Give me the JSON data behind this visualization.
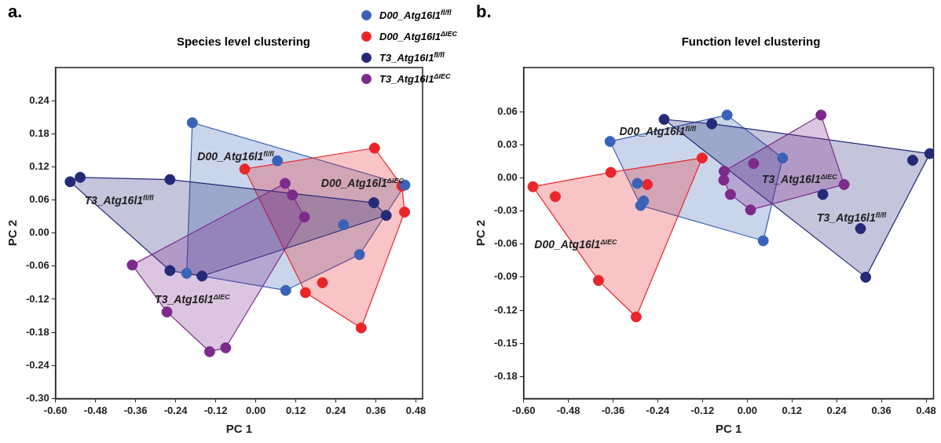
{
  "chart_data": [
    {
      "type": "scatter",
      "title": "Species level clustering",
      "xlabel": "PC 1",
      "ylabel": "PC 2",
      "annotations": [
        "a."
      ],
      "series": [
        {
          "name": "D00_Atg16l1$^{fl/fl}$",
          "color": "#3a62b6",
          "x": [
            -0.19,
            0.065,
            0.447,
            0.263,
            0.311,
            0.09,
            -0.207
          ],
          "values": [
            0.2,
            0.131,
            0.087,
            0.015,
            -0.039,
            -0.104,
            -0.073
          ]
        },
        {
          "name": "D00_Atg16l1$^{ΔIEC}$",
          "color": "#e8262a",
          "x": [
            -0.033,
            0.356,
            0.438,
            0.446,
            0.2,
            0.149,
            0.316
          ],
          "values": [
            0.116,
            0.154,
            0.085,
            0.038,
            -0.09,
            -0.108,
            -0.172
          ]
        },
        {
          "name": "T3_Atg16l1$^{fl/fl}$",
          "color": "#242a78",
          "x": [
            -0.556,
            -0.526,
            -0.257,
            0.354,
            0.391,
            -0.257,
            -0.161
          ],
          "values": [
            0.093,
            0.101,
            0.097,
            0.055,
            0.032,
            -0.068,
            -0.078
          ]
        },
        {
          "name": "T3_Atg16l1$^{ΔIEC}$",
          "color": "#7c2a8c",
          "x": [
            0.088,
            0.11,
            0.146,
            -0.37,
            -0.266,
            -0.138,
            -0.09
          ],
          "values": [
            0.09,
            0.069,
            0.029,
            -0.058,
            -0.143,
            -0.215,
            -0.208
          ]
        }
      ],
      "xlim": [
        -0.6,
        0.5
      ],
      "ylim": [
        -0.3,
        0.3
      ],
      "xticks": [
        {
          "value": -0.6,
          "label": "-0.60"
        },
        {
          "value": -0.48,
          "label": "-0.48"
        },
        {
          "value": -0.36,
          "label": "-0.36"
        },
        {
          "value": -0.24,
          "label": "-0.24"
        },
        {
          "value": -0.12,
          "label": "-0.12"
        },
        {
          "value": 0,
          "label": "0.00"
        },
        {
          "value": 0.12,
          "label": "0.12"
        },
        {
          "value": 0.24,
          "label": "0.24"
        },
        {
          "value": 0.36,
          "label": "0.36"
        },
        {
          "value": 0.48,
          "label": "0.48"
        }
      ],
      "yticks": [
        {
          "value": -0.3,
          "label": "-0.30"
        },
        {
          "value": -0.24,
          "label": "-0.24"
        },
        {
          "value": -0.18,
          "label": "-0.18"
        },
        {
          "value": -0.12,
          "label": "-0.12"
        },
        {
          "value": -0.06,
          "label": "-0.06"
        },
        {
          "value": 0,
          "label": "0.00"
        },
        {
          "value": 0.06,
          "label": "0.06"
        },
        {
          "value": 0.12,
          "label": "0.12"
        },
        {
          "value": 0.18,
          "label": "0.18"
        },
        {
          "value": 0.24,
          "label": "0.24"
        }
      ],
      "legend": "top right",
      "marker": "circle"
    },
    {
      "type": "scatter",
      "title": "Function level clustering",
      "xlabel": "PC 1",
      "ylabel": "PC 2",
      "annotations": [
        "b."
      ],
      "series": [
        {
          "name": "D00_Atg16l1$^{fl/fl}$",
          "color": "#3a62b6",
          "x": [
            -0.368,
            -0.054,
            0.095,
            0.043,
            -0.286,
            -0.278,
            -0.295
          ],
          "values": [
            0.033,
            0.057,
            0.018,
            -0.057,
            -0.025,
            -0.021,
            -0.005
          ]
        },
        {
          "name": "D00_Atg16l1$^{ΔIEC}$",
          "color": "#e8262a",
          "x": [
            -0.575,
            -0.515,
            -0.366,
            -0.268,
            -0.121,
            -0.399,
            -0.298
          ],
          "values": [
            -0.008,
            -0.017,
            0.005,
            -0.006,
            0.018,
            -0.093,
            -0.126
          ]
        },
        {
          "name": "T3_Atg16l1$^{fl/fl}$",
          "color": "#242a78",
          "x": [
            -0.223,
            -0.095,
            0.49,
            0.444,
            0.203,
            0.304,
            0.318
          ],
          "values": [
            0.053,
            0.049,
            0.022,
            0.016,
            -0.015,
            -0.046,
            -0.09
          ]
        },
        {
          "name": "T3_Atg16l1$^{ΔIEC}$",
          "color": "#7c2a8c",
          "x": [
            0.198,
            0.017,
            -0.062,
            -0.063,
            -0.045,
            0.009,
            0.26
          ],
          "values": [
            0.057,
            0.013,
            0.006,
            -0.002,
            -0.015,
            -0.029,
            -0.006
          ]
        }
      ],
      "xlim": [
        -0.6,
        0.5
      ],
      "ylim": [
        -0.2,
        0.1
      ],
      "xticks": [
        {
          "value": -0.6,
          "label": "-0.60"
        },
        {
          "value": -0.48,
          "label": "-0.48"
        },
        {
          "value": -0.36,
          "label": "-0.36"
        },
        {
          "value": -0.24,
          "label": "-0.24"
        },
        {
          "value": -0.12,
          "label": "-0.12"
        },
        {
          "value": 0,
          "label": "0.00"
        },
        {
          "value": 0.12,
          "label": "0.12"
        },
        {
          "value": 0.24,
          "label": "0.24"
        },
        {
          "value": 0.36,
          "label": "0.36"
        },
        {
          "value": 0.48,
          "label": "0.48"
        }
      ],
      "yticks": [
        {
          "value": -0.18,
          "label": "-0.18"
        },
        {
          "value": -0.15,
          "label": "-0.15"
        },
        {
          "value": -0.12,
          "label": "-0.12"
        },
        {
          "value": -0.09,
          "label": "-0.09"
        },
        {
          "value": -0.06,
          "label": "-0.06"
        },
        {
          "value": -0.03,
          "label": "-0.03"
        },
        {
          "value": 0,
          "label": "0.00"
        },
        {
          "value": 0.03,
          "label": "0.03"
        },
        {
          "value": 0.06,
          "label": "0.06"
        }
      ],
      "marker": "circle"
    }
  ]
}
